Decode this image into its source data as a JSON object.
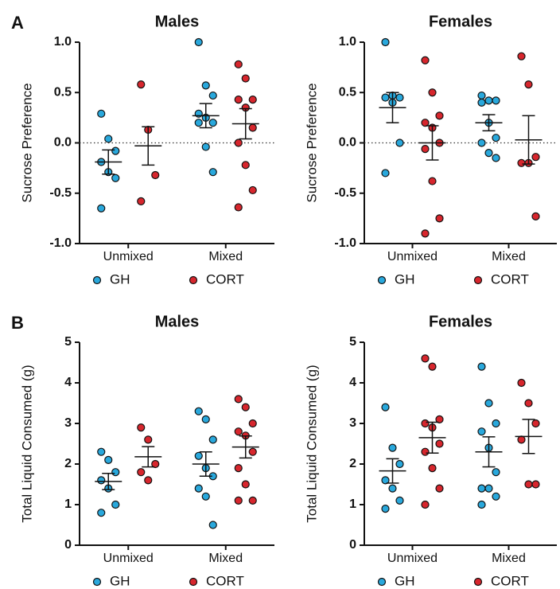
{
  "chart_data": [
    {
      "type": "dot",
      "panel_label": "A",
      "title": "Males",
      "ylabel": "Sucrose Preference",
      "categories": [
        "Unmixed",
        "Mixed"
      ],
      "ylim": [
        -1,
        1
      ],
      "yticks": [
        {
          "value": -1,
          "label": "-1.0"
        },
        {
          "value": -0.5,
          "label": "-0.5"
        },
        {
          "value": 0,
          "label": "0.0"
        },
        {
          "value": 0.5,
          "label": "0.5"
        },
        {
          "value": 1,
          "label": "1.0"
        }
      ],
      "reference_line": 0,
      "series": [
        {
          "name": "GH",
          "color": "#29a8dc",
          "points": [
            [
              0.29,
              0.04,
              -0.08,
              -0.19,
              -0.29,
              -0.35,
              -0.65
            ],
            [
              1.0,
              0.57,
              0.47,
              0.29,
              0.25,
              0.2,
              0.2,
              -0.04,
              -0.29
            ]
          ],
          "mean": [
            -0.19,
            0.27
          ],
          "sem": [
            0.12,
            0.12
          ]
        },
        {
          "name": "CORT",
          "color": "#d7262d",
          "points": [
            [
              0.58,
              0.13,
              -0.32,
              -0.58
            ],
            [
              0.78,
              0.64,
              0.43,
              0.43,
              0.35,
              0.15,
              0.0,
              -0.22,
              -0.47,
              -0.64
            ]
          ],
          "mean": [
            -0.03,
            0.19
          ],
          "sem": [
            0.19,
            0.15
          ]
        }
      ]
    },
    {
      "type": "dot",
      "title": "Females",
      "ylabel": "Sucrose Preference",
      "categories": [
        "Unmixed",
        "Mixed"
      ],
      "ylim": [
        -1,
        1
      ],
      "yticks": [
        {
          "value": -1,
          "label": "-1.0"
        },
        {
          "value": -0.5,
          "label": "-0.5"
        },
        {
          "value": 0,
          "label": "0.0"
        },
        {
          "value": 0.5,
          "label": "0.5"
        },
        {
          "value": 1,
          "label": "1.0"
        }
      ],
      "reference_line": 0,
      "series": [
        {
          "name": "GH",
          "color": "#29a8dc",
          "points": [
            [
              1.0,
              0.47,
              0.45,
              0.45,
              0.4,
              0.0,
              -0.3
            ],
            [
              0.47,
              0.42,
              0.42,
              0.4,
              0.2,
              0.05,
              0.0,
              -0.1,
              -0.15
            ]
          ],
          "mean": [
            0.35,
            0.2
          ],
          "sem": [
            0.15,
            0.08
          ]
        },
        {
          "name": "CORT",
          "color": "#d7262d",
          "points": [
            [
              0.82,
              0.5,
              0.27,
              0.2,
              0.15,
              0.0,
              -0.06,
              -0.38,
              -0.75,
              -0.9
            ],
            [
              0.86,
              0.58,
              -0.14,
              -0.2,
              -0.2,
              -0.73
            ]
          ],
          "mean": [
            0.0,
            0.03
          ],
          "sem": [
            0.17,
            0.24
          ]
        }
      ]
    },
    {
      "type": "dot",
      "panel_label": "B",
      "title": "Males",
      "ylabel": "Total Liquid Consumed (g)",
      "categories": [
        "Unmixed",
        "Mixed"
      ],
      "ylim": [
        0,
        5
      ],
      "yticks": [
        0,
        1,
        2,
        3,
        4,
        5
      ],
      "series": [
        {
          "name": "GH",
          "color": "#29a8dc",
          "points": [
            [
              2.3,
              2.1,
              1.8,
              1.6,
              1.4,
              1.0,
              0.8
            ],
            [
              3.3,
              3.1,
              2.6,
              2.2,
              1.9,
              1.7,
              1.4,
              1.2,
              0.5
            ]
          ],
          "mean": [
            1.57,
            2.0
          ],
          "sem": [
            0.2,
            0.3
          ]
        },
        {
          "name": "CORT",
          "color": "#d7262d",
          "points": [
            [
              2.9,
              2.6,
              2.0,
              1.8,
              1.6
            ],
            [
              3.6,
              3.4,
              3.0,
              2.8,
              2.7,
              2.3,
              1.9,
              1.5,
              1.1,
              1.1
            ]
          ],
          "mean": [
            2.18,
            2.42
          ],
          "sem": [
            0.25,
            0.27
          ]
        }
      ]
    },
    {
      "type": "dot",
      "title": "Females",
      "ylabel": "Total Liquid Consumed (g)",
      "categories": [
        "Unmixed",
        "Mixed"
      ],
      "ylim": [
        0,
        5
      ],
      "yticks": [
        0,
        1,
        2,
        3,
        4,
        5
      ],
      "series": [
        {
          "name": "GH",
          "color": "#29a8dc",
          "points": [
            [
              3.4,
              2.4,
              2.0,
              1.6,
              1.4,
              1.1,
              0.9
            ],
            [
              4.4,
              3.5,
              3.0,
              2.8,
              2.4,
              1.8,
              1.4,
              1.4,
              1.2,
              1.0
            ]
          ],
          "mean": [
            1.83,
            2.3
          ],
          "sem": [
            0.3,
            0.37
          ]
        },
        {
          "name": "CORT",
          "color": "#d7262d",
          "points": [
            [
              4.6,
              4.4,
              3.1,
              3.0,
              2.9,
              2.5,
              2.3,
              1.9,
              1.4,
              1.0
            ],
            [
              4.0,
              3.5,
              3.0,
              2.6,
              1.5,
              1.5
            ]
          ],
          "mean": [
            2.65,
            2.68
          ],
          "sem": [
            0.38,
            0.42
          ]
        }
      ]
    }
  ]
}
